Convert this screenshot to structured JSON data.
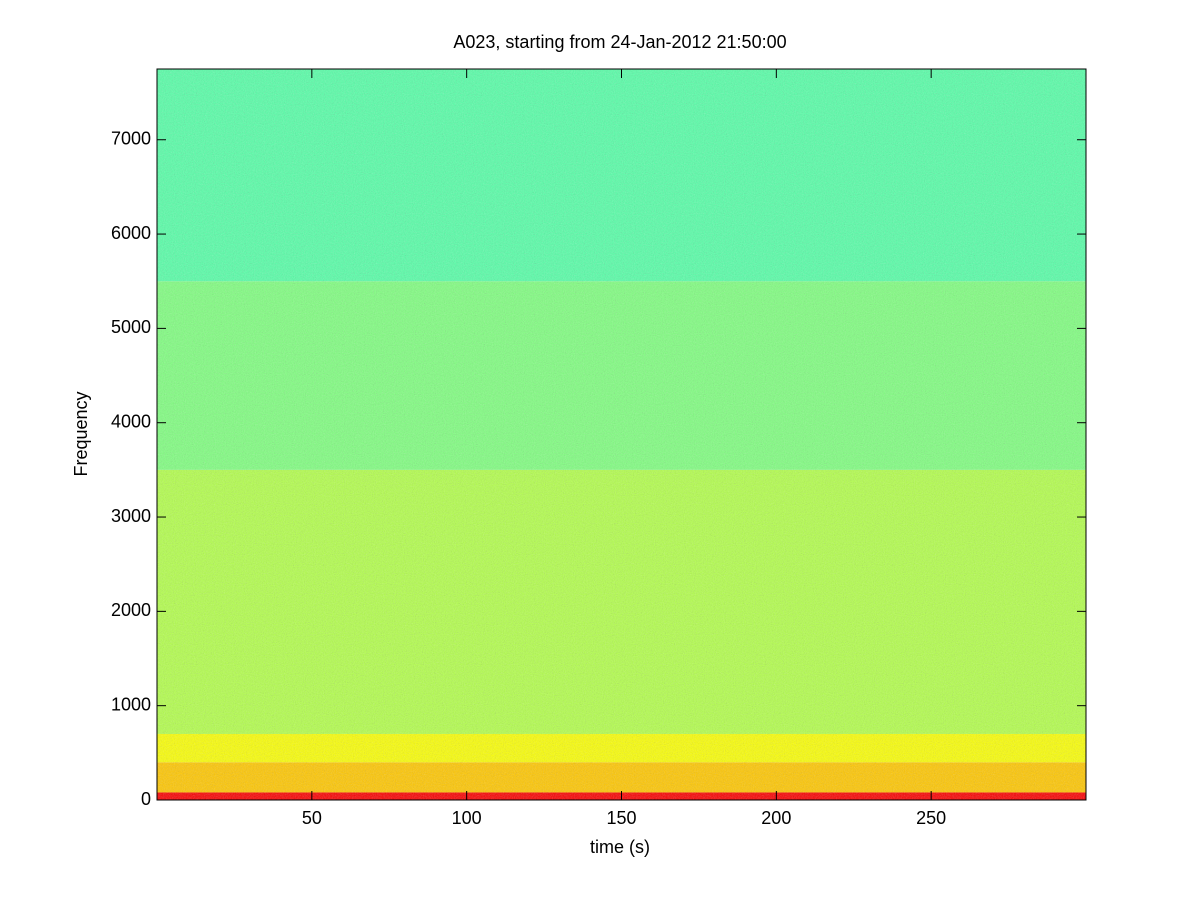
{
  "chart_data": {
    "type": "spectrogram",
    "title": "A023, starting from 24-Jan-2012 21:50:00",
    "xlabel": "time (s)",
    "ylabel": "Frequency",
    "xlim": [
      0,
      300
    ],
    "ylim": [
      0,
      7750
    ],
    "xticks": [
      50,
      100,
      150,
      200,
      250
    ],
    "yticks": [
      0,
      1000,
      2000,
      3000,
      4000,
      5000,
      6000,
      7000
    ],
    "colormap": "jet",
    "clim": [
      0,
      1
    ],
    "ybins": [
      0,
      80,
      400,
      700,
      1500,
      3500,
      5500,
      7750
    ],
    "values": [
      0.88,
      0.68,
      0.62,
      0.55,
      0.55,
      0.5,
      0.46
    ]
  }
}
